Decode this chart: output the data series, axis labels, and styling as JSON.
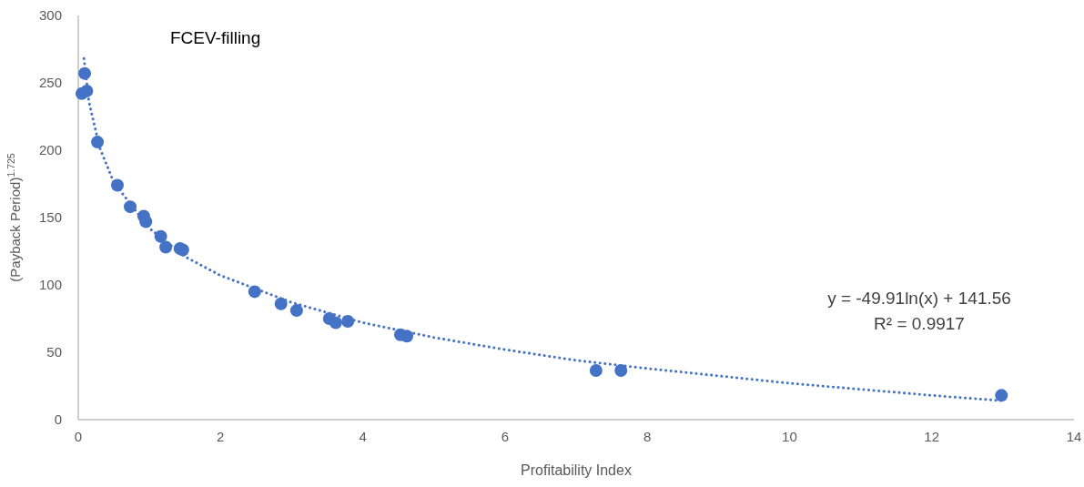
{
  "chart_data": {
    "type": "scatter",
    "title": "FCEV-filling",
    "xlabel": "Profitability Index",
    "ylabel": "(Payback Period)$^{1.725}$",
    "xlim": [
      0,
      14
    ],
    "xticks": [
      0,
      2,
      4,
      6,
      8,
      10,
      12,
      14
    ],
    "ylim": [
      0,
      300
    ],
    "yticks": [
      0,
      50,
      100,
      150,
      200,
      250,
      300
    ],
    "grid": false,
    "marker": "circle",
    "annotations": [
      "y = -49.91ln(x) + 141.56",
      "R² = 0.9917"
    ],
    "series": [
      {
        "color": "#4472c4",
        "x": [
          0.09,
          0.12,
          0.05,
          0.27,
          0.55,
          0.73,
          0.92,
          0.95,
          1.16,
          1.23,
          1.43,
          1.47,
          2.48,
          2.85,
          3.07,
          3.53,
          3.62,
          3.79,
          4.53,
          4.62,
          7.28,
          7.63,
          12.98
        ],
        "values": [
          257,
          244,
          242,
          206,
          174,
          158,
          151,
          147,
          136,
          128,
          127,
          126,
          95,
          86,
          81,
          75,
          72,
          73,
          63,
          62,
          36.5,
          36.5,
          18
        ]
      },
      {
        "type": "line",
        "line_style": "dotted",
        "marker": "none",
        "color": "#4472c4",
        "x": [
          0.08,
          0.15,
          0.3,
          0.5,
          1,
          1.5,
          2,
          3,
          4,
          5,
          6,
          7,
          8,
          10,
          12,
          13
        ],
        "values": [
          268,
          236,
          202,
          176,
          142,
          121,
          107,
          87,
          72,
          61,
          52,
          44,
          38,
          27,
          18,
          14
        ]
      }
    ]
  }
}
